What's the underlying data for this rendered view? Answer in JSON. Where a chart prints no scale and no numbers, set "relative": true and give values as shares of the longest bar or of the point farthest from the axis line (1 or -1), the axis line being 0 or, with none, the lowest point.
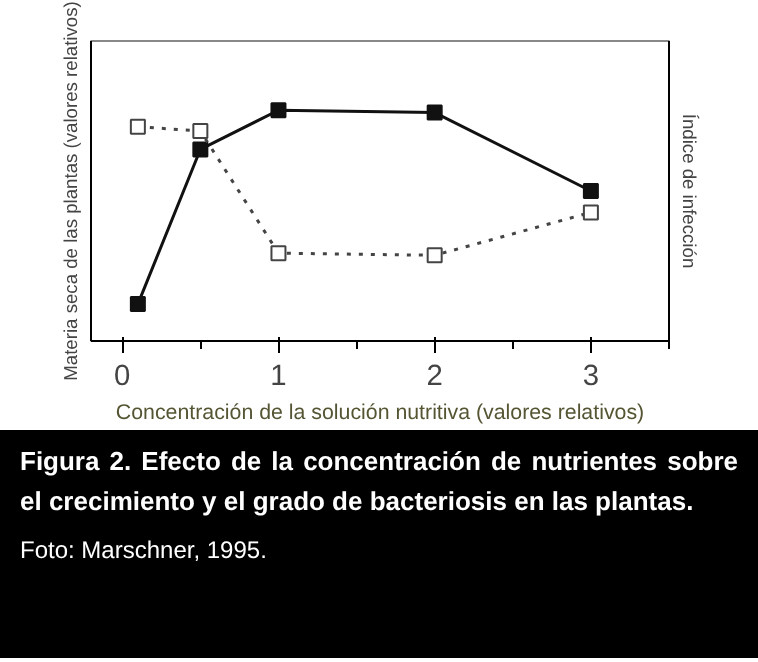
{
  "chart_data": {
    "type": "line",
    "relative": true,
    "title": "Figura 2. Efecto de la concentración de nutrientes sobre el crecimiento y el grado de bacteriosis en las plantas.",
    "xlabel": "Concentración de la solución nutritiva (valores relativos)",
    "ylabel": "Materia seca de las plantas (valores relativos)",
    "y2label": "Índice de infección",
    "annotations": [
      "Foto: Marschner, 1995."
    ],
    "x": [
      0.1,
      0.5,
      1,
      2,
      3
    ],
    "xlim": [
      -0.2,
      3.5
    ],
    "xticks": [
      0,
      1,
      2,
      3
    ],
    "grid": false,
    "marker": "square",
    "series": [
      {
        "color": "#111111",
        "values": [
          0.16,
          0.83,
          1,
          0.99,
          0.65
        ],
        "line_style": "solid"
      },
      {
        "color": "#444444",
        "values": [
          1,
          0.98,
          0.41,
          0.4,
          0.6
        ],
        "line_style": "dotted",
        "axis": "y2"
      }
    ]
  }
}
